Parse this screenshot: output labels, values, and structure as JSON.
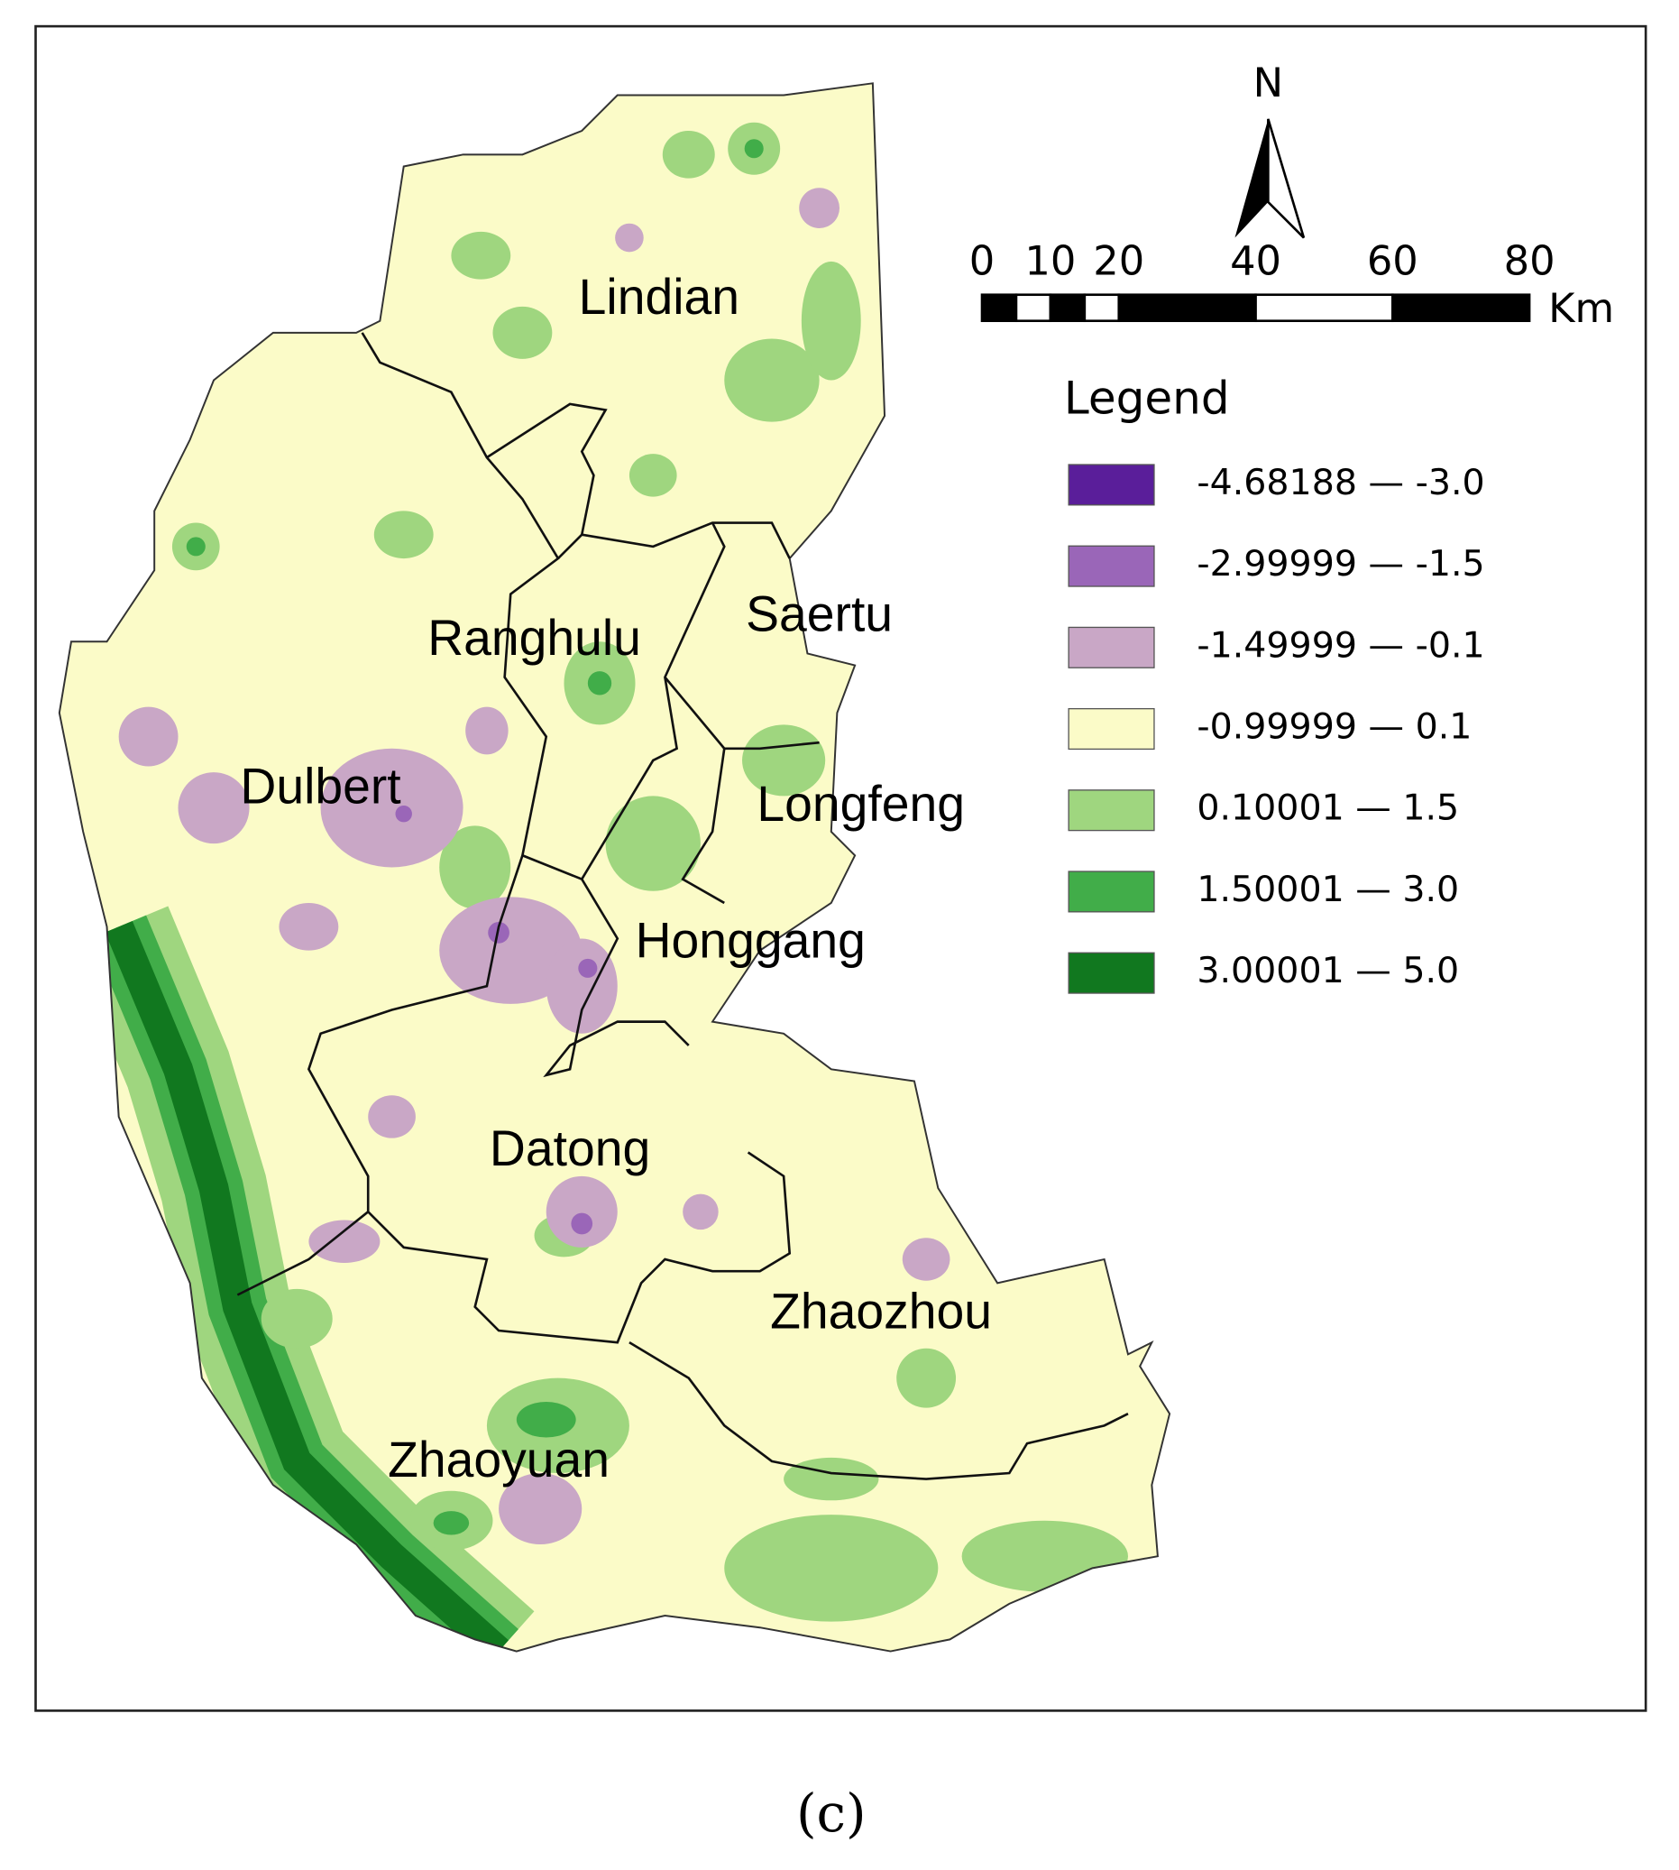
{
  "north": "N",
  "scale_bar": {
    "ticks": [
      0,
      10,
      20,
      40,
      60,
      80
    ],
    "unit": "Km"
  },
  "legend": {
    "title": "Legend",
    "items": [
      {
        "label": "-4.68188 — -3.0",
        "color": "#5a1e9a"
      },
      {
        "label": "-2.99999 — -1.5",
        "color": "#9a66b8"
      },
      {
        "label": "-1.49999 — -0.1",
        "color": "#c9a7c6"
      },
      {
        "label": "-0.99999 — 0.1",
        "color": "#fbfbc8"
      },
      {
        "label": "0.10001 — 1.5",
        "color": "#9fd67f"
      },
      {
        "label": "1.50001 — 3.0",
        "color": "#41ad49"
      },
      {
        "label": "3.00001 — 5.0",
        "color": "#11781f"
      }
    ]
  },
  "regions": [
    "Lindian",
    "Saertu",
    "Ranghulu",
    "Dulbert",
    "Longfeng",
    "Honggang",
    "Datong",
    "Zhaozhou",
    "Zhaoyuan"
  ],
  "caption": "(c)"
}
